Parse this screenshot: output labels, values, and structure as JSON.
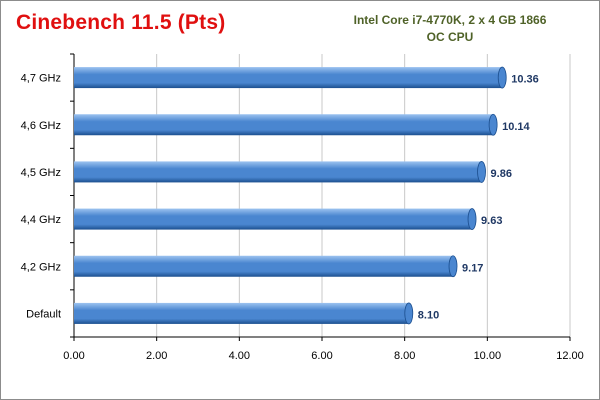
{
  "colors": {
    "title": "#e01010",
    "subtitle": "#4f6228",
    "bar_main": "#4a86d0",
    "bar_top": "#9cc3f0",
    "bar_bottom": "#1c4f8f",
    "data_label": "#1f3864",
    "gridline": "#c8c8c8"
  },
  "chart_data": {
    "type": "bar",
    "orientation": "horizontal",
    "title": "Cinebench  11.5 (Pts)",
    "subtitle": [
      "Intel Core i7-4770K, 2 x 4 GB 1866",
      "OC CPU"
    ],
    "categories": [
      "4,7 GHz",
      "4,6 GHz",
      "4,5 GHz",
      "4,4 GHz",
      "4,2 GHz",
      "Default"
    ],
    "values": [
      10.36,
      10.14,
      9.86,
      9.63,
      9.17,
      8.1
    ],
    "value_labels": [
      "10.36",
      "10.14",
      "9.86",
      "9.63",
      "9.17",
      "8.10"
    ],
    "xticks": [
      "0.00",
      "2.00",
      "4.00",
      "6.00",
      "8.00",
      "10.00",
      "12.00"
    ],
    "xlim": [
      0,
      12
    ],
    "xlabel": "",
    "ylabel": "",
    "grid": true,
    "legend": "none"
  }
}
